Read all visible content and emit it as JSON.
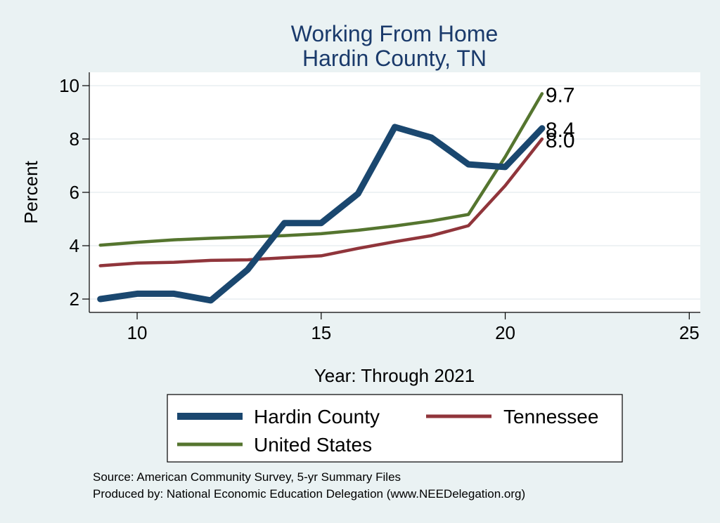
{
  "chart_data": {
    "type": "line",
    "title": "Working From Home",
    "subtitle": "Hardin County, TN",
    "xlabel": "Year: Through 2021",
    "ylabel": "Percent",
    "xlim": [
      8.7,
      25.3
    ],
    "ylim": [
      1.5,
      10.5
    ],
    "xticks": [
      10,
      15,
      20,
      25
    ],
    "yticks": [
      2,
      4,
      6,
      8,
      10
    ],
    "grid": true,
    "legend_position": "bottom",
    "x": [
      9,
      10,
      11,
      12,
      13,
      14,
      15,
      16,
      17,
      18,
      19,
      20,
      21
    ],
    "series": [
      {
        "name": "Hardin County",
        "color": "#1a476f",
        "width": "thick",
        "values": [
          2.0,
          2.2,
          2.2,
          1.95,
          3.1,
          4.85,
          4.85,
          5.95,
          8.45,
          8.05,
          7.05,
          6.95,
          8.4
        ],
        "end_label": "8.4"
      },
      {
        "name": "Tennessee",
        "color": "#90353b",
        "width": "medium",
        "values": [
          3.25,
          3.35,
          3.38,
          3.45,
          3.47,
          3.55,
          3.62,
          3.9,
          4.15,
          4.38,
          4.75,
          6.25,
          8.0
        ],
        "end_label": "8.0"
      },
      {
        "name": "United States",
        "color": "#55752f",
        "width": "medium",
        "values": [
          4.02,
          4.13,
          4.22,
          4.28,
          4.33,
          4.38,
          4.45,
          4.58,
          4.74,
          4.93,
          5.17,
          7.33,
          9.7
        ],
        "end_label": "9.7"
      }
    ]
  },
  "source": {
    "line1": "Source: American Community Survey, 5-yr Summary Files",
    "line2": "Produced by: National Economic Education Delegation (www.NEEDelegation.org)"
  }
}
